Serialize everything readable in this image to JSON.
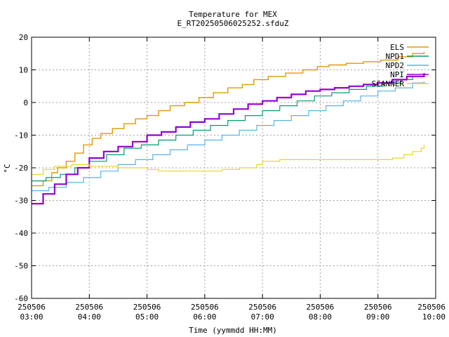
{
  "chart_data": {
    "type": "line",
    "title": "Temperature for MEX",
    "subtitle": "E_RT20250506025252.sfduZ",
    "xlabel": "Time (yymmdd HH:MM)",
    "ylabel": "°C",
    "ylim": [
      -60,
      20
    ],
    "yticks": [
      -60,
      -50,
      -40,
      -30,
      -20,
      -10,
      0,
      10,
      20
    ],
    "xlim": [
      3.0,
      10.0
    ],
    "xticks": [
      {
        "value": 3,
        "date": "250506",
        "time": "03:00"
      },
      {
        "value": 4,
        "date": "250506",
        "time": "04:00"
      },
      {
        "value": 5,
        "date": "250506",
        "time": "05:00"
      },
      {
        "value": 6,
        "date": "250506",
        "time": "06:00"
      },
      {
        "value": 7,
        "date": "250506",
        "time": "07:00"
      },
      {
        "value": 8,
        "date": "250506",
        "time": "08:00"
      },
      {
        "value": 9,
        "date": "250506",
        "time": "09:00"
      },
      {
        "value": 10,
        "date": "250506",
        "time": "10:00"
      }
    ],
    "grid": true,
    "legend_position": "top-right",
    "series": [
      {
        "name": "ELS",
        "color": "#e09a00",
        "x": [
          3.0,
          3.2,
          3.35,
          3.45,
          3.6,
          3.75,
          3.9,
          4.05,
          4.2,
          4.4,
          4.6,
          4.8,
          5.0,
          5.2,
          5.4,
          5.65,
          5.9,
          6.15,
          6.4,
          6.65,
          6.85,
          7.1,
          7.4,
          7.7,
          7.95,
          8.15,
          8.45,
          8.75,
          9.05,
          9.35,
          9.6,
          9.8
        ],
        "y": [
          -25.5,
          -24,
          -21.5,
          -20,
          -18,
          -15.5,
          -13,
          -11,
          -9.5,
          -8,
          -6.5,
          -5,
          -4,
          -2.5,
          -1,
          0,
          1.5,
          3,
          4.5,
          5.5,
          7,
          8,
          9,
          10,
          11,
          11.5,
          12,
          12.5,
          13,
          14,
          15,
          15.5
        ]
      },
      {
        "name": "NPD1",
        "color": "#009e73",
        "x": [
          3.0,
          3.25,
          3.5,
          3.75,
          4.0,
          4.3,
          4.6,
          4.9,
          5.2,
          5.5,
          5.8,
          6.1,
          6.4,
          6.7,
          7.0,
          7.3,
          7.6,
          7.9,
          8.2,
          8.5,
          8.8,
          9.1,
          9.4,
          9.6,
          9.8
        ],
        "y": [
          -24,
          -23,
          -22,
          -20,
          -18,
          -16,
          -14,
          -13,
          -11.5,
          -10,
          -8.5,
          -7,
          -5.5,
          -4,
          -2.5,
          -1,
          0.5,
          2,
          3,
          4,
          5,
          6,
          7,
          8,
          9
        ]
      },
      {
        "name": "NPD2",
        "color": "#56b4e9",
        "x": [
          3.0,
          3.3,
          3.6,
          3.9,
          4.2,
          4.5,
          4.8,
          5.1,
          5.4,
          5.7,
          6.0,
          6.3,
          6.6,
          6.9,
          7.2,
          7.5,
          7.8,
          8.1,
          8.4,
          8.7,
          9.0,
          9.3,
          9.6,
          9.8
        ],
        "y": [
          -27,
          -26,
          -24.5,
          -23,
          -21,
          -19,
          -17.5,
          -16,
          -14.5,
          -13,
          -11.5,
          -10,
          -8.5,
          -7,
          -5.5,
          -4,
          -2.5,
          -1,
          0.5,
          2,
          3.5,
          4.5,
          6,
          6.5
        ]
      },
      {
        "name": "NPI",
        "color": "#9400d3",
        "x": [
          3.0,
          3.2,
          3.4,
          3.6,
          3.8,
          4.0,
          4.25,
          4.5,
          4.75,
          5.0,
          5.25,
          5.5,
          5.75,
          6.0,
          6.25,
          6.5,
          6.75,
          7.0,
          7.25,
          7.5,
          7.75,
          8.0,
          8.25,
          8.5,
          8.75,
          9.0,
          9.25,
          9.5,
          9.8
        ],
        "y": [
          -31,
          -28,
          -25,
          -22,
          -20,
          -17,
          -15,
          -13.5,
          -12,
          -10,
          -9,
          -7.5,
          -6,
          -5,
          -3.5,
          -2,
          -0.5,
          0.5,
          1.5,
          2.5,
          3.5,
          4,
          4.5,
          5,
          5.5,
          6,
          7,
          8,
          9
        ]
      },
      {
        "name": "SCANNER",
        "color": "#e6d627",
        "x": [
          3.0,
          3.2,
          3.4,
          3.7,
          4.0,
          4.5,
          5.0,
          5.2,
          5.6,
          6.0,
          6.3,
          6.6,
          6.9,
          7.0,
          7.3,
          7.6,
          8.0,
          8.3,
          8.6,
          9.0,
          9.25,
          9.45,
          9.6,
          9.75,
          9.8
        ],
        "y": [
          -22,
          -20.5,
          -19.5,
          -19,
          -19.5,
          -20,
          -20.5,
          -21,
          -21,
          -21,
          -20.5,
          -20,
          -19,
          -18,
          -17.5,
          -17.5,
          -17.5,
          -17.5,
          -17.5,
          -17.5,
          -17,
          -16,
          -15,
          -14,
          -13
        ]
      }
    ]
  }
}
